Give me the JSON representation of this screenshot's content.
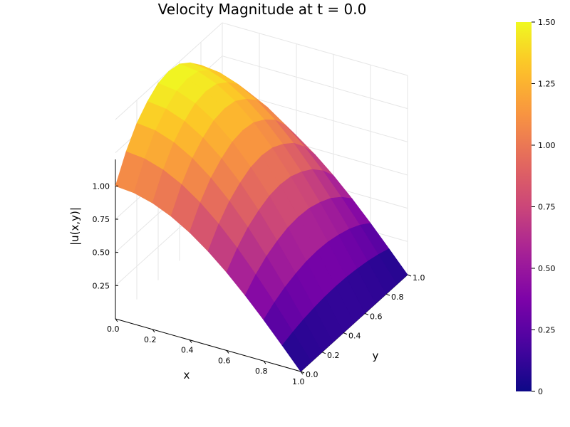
{
  "chart_data": {
    "type": "surface",
    "title": "Velocity Magnitude at t = 0.0",
    "xlabel": "x",
    "ylabel": "y",
    "zlabel": "|u(x,y)|",
    "x_ticks": [
      "0.0",
      "0.2",
      "0.4",
      "0.6",
      "0.8",
      "1.0"
    ],
    "y_ticks": [
      "0.0",
      "0.2",
      "0.4",
      "0.6",
      "0.8",
      "1.0"
    ],
    "z_ticks": [
      "0.25",
      "0.50",
      "0.75",
      "1.00"
    ],
    "xlim": [
      0,
      1
    ],
    "ylim": [
      0,
      1
    ],
    "zlim": [
      0,
      1.5
    ],
    "colorbar": {
      "colormap": "plasma",
      "clim": [
        0,
        1.5
      ],
      "ticks": [
        "0",
        "0.25",
        "0.50",
        "0.75",
        "1.00",
        "1.25",
        "1.50"
      ]
    },
    "surface_grid": {
      "x": [
        0.0,
        0.1,
        0.2,
        0.3,
        0.4,
        0.5,
        0.6,
        0.7,
        0.8,
        0.9,
        1.0
      ],
      "y": [
        0.0,
        0.1,
        0.2,
        0.3,
        0.4,
        0.5,
        0.6,
        0.7,
        0.8,
        0.9,
        1.0
      ],
      "z": [
        [
          1.0,
          1.186,
          1.327,
          1.418,
          1.482,
          1.5,
          1.482,
          1.418,
          1.327,
          1.186,
          1.0
        ],
        [
          0.988,
          1.172,
          1.311,
          1.401,
          1.464,
          1.482,
          1.464,
          1.401,
          1.311,
          1.172,
          0.988
        ],
        [
          0.951,
          1.128,
          1.262,
          1.349,
          1.409,
          1.427,
          1.409,
          1.349,
          1.262,
          1.128,
          0.951
        ],
        [
          0.891,
          1.057,
          1.182,
          1.263,
          1.32,
          1.336,
          1.32,
          1.263,
          1.182,
          1.057,
          0.891
        ],
        [
          0.809,
          0.96,
          1.073,
          1.147,
          1.199,
          1.214,
          1.199,
          1.147,
          1.073,
          0.96,
          0.809
        ],
        [
          0.707,
          0.839,
          0.938,
          1.003,
          1.048,
          1.061,
          1.048,
          1.003,
          0.938,
          0.839,
          0.707
        ],
        [
          0.588,
          0.697,
          0.78,
          0.834,
          0.871,
          0.882,
          0.871,
          0.834,
          0.78,
          0.697,
          0.588
        ],
        [
          0.454,
          0.538,
          0.602,
          0.644,
          0.673,
          0.681,
          0.673,
          0.644,
          0.602,
          0.538,
          0.454
        ],
        [
          0.309,
          0.367,
          0.41,
          0.438,
          0.458,
          0.464,
          0.458,
          0.438,
          0.41,
          0.367,
          0.309
        ],
        [
          0.156,
          0.185,
          0.207,
          0.222,
          0.232,
          0.235,
          0.232,
          0.222,
          0.207,
          0.185,
          0.156
        ],
        [
          0.0,
          0.0,
          0.0,
          0.0,
          0.0,
          0.0,
          0.0,
          0.0,
          0.0,
          0.0,
          0.0
        ]
      ]
    }
  }
}
